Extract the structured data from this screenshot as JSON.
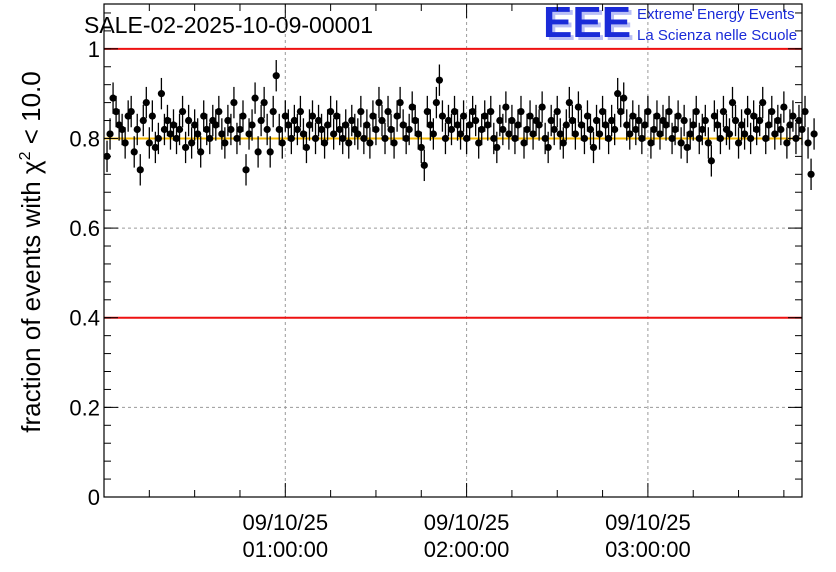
{
  "chart_data": {
    "type": "scatter",
    "title": "SALE-02-2025-10-09-00001",
    "ylabel_parts": {
      "prefix": "fraction of events with ",
      "symbol": "χ",
      "exponent": "2",
      "suffix": " < 10.0"
    },
    "xlabel": "",
    "ylim": [
      0,
      1.1
    ],
    "xlim_minutes": [
      0,
      231
    ],
    "yticks": [
      {
        "value": 0,
        "label": "0"
      },
      {
        "value": 0.2,
        "label": "0.2"
      },
      {
        "value": 0.4,
        "label": "0.4"
      },
      {
        "value": 0.6,
        "label": "0.6"
      },
      {
        "value": 0.8,
        "label": "0.8"
      },
      {
        "value": 1,
        "label": "1"
      }
    ],
    "xticks": [
      {
        "minutes": 60,
        "date": "09/10/25",
        "time": "01:00:00"
      },
      {
        "minutes": 120,
        "date": "09/10/25",
        "time": "02:00:00"
      },
      {
        "minutes": 180,
        "date": "09/10/25",
        "time": "03:00:00"
      }
    ],
    "reference_lines": [
      {
        "name": "upper-limit",
        "y": 1.0,
        "color": "#ee1111"
      },
      {
        "name": "lower-limit",
        "y": 0.4,
        "color": "#ee1111"
      },
      {
        "name": "expected-fraction",
        "y": 0.8,
        "color": "#f5b800"
      }
    ],
    "series": [
      {
        "name": "fraction per bin",
        "color": "#000000",
        "error": 0.035,
        "x_start_minutes": 1.0,
        "x_step_minutes": 1.0,
        "values": [
          0.76,
          0.81,
          0.89,
          0.86,
          0.83,
          0.82,
          0.79,
          0.85,
          0.86,
          0.77,
          0.82,
          0.73,
          0.84,
          0.88,
          0.79,
          0.85,
          0.78,
          0.8,
          0.9,
          0.82,
          0.84,
          0.81,
          0.83,
          0.8,
          0.82,
          0.86,
          0.78,
          0.84,
          0.79,
          0.83,
          0.81,
          0.77,
          0.85,
          0.82,
          0.8,
          0.84,
          0.83,
          0.86,
          0.81,
          0.79,
          0.84,
          0.82,
          0.88,
          0.8,
          0.82,
          0.85,
          0.73,
          0.81,
          0.83,
          0.89,
          0.77,
          0.84,
          0.88,
          0.82,
          0.77,
          0.86,
          0.94,
          0.82,
          0.79,
          0.85,
          0.83,
          0.8,
          0.84,
          0.82,
          0.86,
          0.81,
          0.78,
          0.83,
          0.85,
          0.8,
          0.84,
          0.82,
          0.79,
          0.83,
          0.86,
          0.81,
          0.85,
          0.82,
          0.8,
          0.83,
          0.79,
          0.84,
          0.82,
          0.81,
          0.86,
          0.8,
          0.83,
          0.79,
          0.85,
          0.82,
          0.88,
          0.84,
          0.8,
          0.86,
          0.82,
          0.79,
          0.85,
          0.88,
          0.83,
          0.8,
          0.82,
          0.87,
          0.84,
          0.81,
          0.78,
          0.74,
          0.86,
          0.83,
          0.81,
          0.88,
          0.93,
          0.85,
          0.8,
          0.84,
          0.82,
          0.86,
          0.83,
          0.81,
          0.85,
          0.8,
          0.83,
          0.86,
          0.84,
          0.79,
          0.82,
          0.85,
          0.83,
          0.86,
          0.8,
          0.78,
          0.84,
          0.82,
          0.87,
          0.81,
          0.84,
          0.8,
          0.83,
          0.86,
          0.79,
          0.82,
          0.85,
          0.81,
          0.84,
          0.83,
          0.87,
          0.8,
          0.78,
          0.84,
          0.82,
          0.86,
          0.81,
          0.79,
          0.83,
          0.88,
          0.84,
          0.81,
          0.87,
          0.83,
          0.8,
          0.85,
          0.82,
          0.78,
          0.84,
          0.81,
          0.86,
          0.83,
          0.8,
          0.84,
          0.82,
          0.9,
          0.86,
          0.89,
          0.83,
          0.81,
          0.85,
          0.82,
          0.84,
          0.8,
          0.83,
          0.86,
          0.79,
          0.82,
          0.85,
          0.81,
          0.84,
          0.83,
          0.86,
          0.8,
          0.82,
          0.85,
          0.79,
          0.84,
          0.78,
          0.81,
          0.83,
          0.86,
          0.8,
          0.82,
          0.84,
          0.79,
          0.75,
          0.85,
          0.83,
          0.8,
          0.86,
          0.82,
          0.81,
          0.88,
          0.84,
          0.79,
          0.83,
          0.81,
          0.86,
          0.8,
          0.85,
          0.82,
          0.84,
          0.88,
          0.8,
          0.83,
          0.86,
          0.81,
          0.84,
          0.82,
          0.87,
          0.79,
          0.83,
          0.85,
          0.8,
          0.84,
          0.82,
          0.86,
          0.79,
          0.72,
          0.81
        ]
      }
    ]
  },
  "logo": {
    "letters": "EEE",
    "line1": "Extreme Energy Events",
    "line2": "La Scienza nelle Scuole",
    "color": "#1a2bd8"
  }
}
